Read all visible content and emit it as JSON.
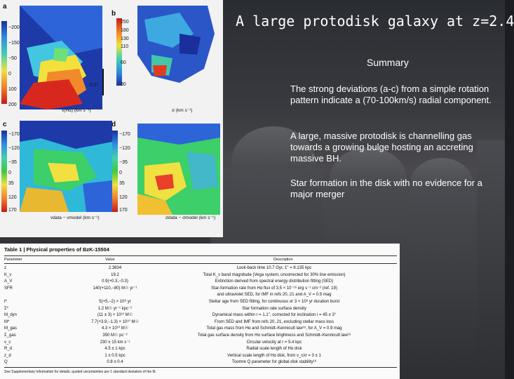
{
  "slide": {
    "title": "A large protodisk galaxy at z=2.4",
    "summary_label": "Summary",
    "bullets": [
      "The strong deviations (a-c) from a simple rotation pattern indicate a (70-100km/s) radial component.",
      "A large, massive protodisk is channelling gas towards a growing bulge hosting an accreting massive BH.",
      "Star formation in the disk with no evidence for a major merger"
    ]
  },
  "figure": {
    "panels": [
      {
        "letter": "a",
        "ticks": [
          "−200",
          "−150",
          "−50",
          "0",
          "100",
          "200"
        ],
        "scale_label": "0.5''",
        "caption": "v(Hα) (km s⁻¹)"
      },
      {
        "letter": "b",
        "ticks": [
          "250",
          "180",
          "130",
          "110",
          "60",
          "30"
        ],
        "caption": "σ (km s⁻¹)"
      },
      {
        "letter": "c",
        "ticks": [
          "−170",
          "−120",
          "−35",
          "0",
          "35",
          "120",
          "170"
        ],
        "caption": "vdata − vmodel (km s⁻¹)"
      },
      {
        "letter": "d",
        "ticks": [
          "−170",
          "−120",
          "−35",
          "0",
          "35",
          "120",
          "170"
        ],
        "caption": "σdata − σmodel (km s⁻¹)"
      }
    ]
  },
  "table": {
    "title": "Table 1 | Physical properties of BzK-15504",
    "headers": [
      "Parameter",
      "Value",
      "Description"
    ],
    "rows": [
      [
        "z",
        "2.3834",
        "Look-back time 10.7 Gyr, 1'' = 8.135 kpc"
      ],
      [
        "K_v",
        "19.2",
        "Total K_s band magnitude (Vega system, uncorrected for 30% line emission)"
      ],
      [
        "A_V",
        "0.9(+0.3,−0.3)",
        "Extinction derived from spectral energy distribution fitting (SED)"
      ],
      [
        "SFR",
        "140(+110,−80) M☉ yr⁻¹",
        "Star-formation rate from Hα flux of 3.5 × 10⁻¹⁶ erg s⁻¹ cm⁻² (ref. 19)"
      ],
      [
        "",
        "",
        "and ultraviolet SED, for IMF in refs 20, 21 and A_V = 0.9 mag"
      ],
      [
        "t*",
        "5(+5,−2) × 10⁸ yr",
        "Stellar age from SED fitting, for continuous or 3 × 10⁸ yr duration burst"
      ],
      [
        "Σ*",
        "1.2 M☉ yr⁻¹ kpc⁻²",
        "Star formation rate surface density"
      ],
      [
        "M_dyn",
        "(11 ± 3) × 10¹⁰ M☉",
        "Dynamical mass within r = 1.1'', corrected for inclination i = 45 ± 3°"
      ],
      [
        "M*",
        "7.7(+3.9,−1.3) × 10¹⁰ M☉",
        "From SED and IMF from refs 20, 21, excluding stellar mass loss"
      ],
      [
        "M_gas",
        "4.3 × 10¹⁰ M☉",
        "Total gas mass from Hα and Schmidt–Kennicutt law¹⁸, for A_V = 0.9 mag"
      ],
      [
        "Σ_gas",
        "350 M☉ pc⁻²",
        "Total gas surface density from Hα surface brightness and Schmidt–Kennicutt law¹⁸"
      ],
      [
        "v_c",
        "230 ± 15 km s⁻¹",
        "Circular velocity at r = 5.4 kpc"
      ],
      [
        "R_d",
        "4.5 ± 1 kpc",
        "Radial scale length of Hα disk"
      ],
      [
        "z_d",
        "1 ± 0.5 kpc",
        "Vertical scale length of Hα disk, from v_c/σ = 3 ± 1"
      ],
      [
        "Q",
        "0.8 ± 0.4",
        "Toomre Q parameter for global disk stability¹⁸"
      ]
    ],
    "footnote": "See Supplementary Information for details; quoted uncertainties are 1 standard deviation of the fit."
  },
  "colors": {
    "title": "#ffffff",
    "text": "#ffffff",
    "background": "#2a2c31"
  }
}
